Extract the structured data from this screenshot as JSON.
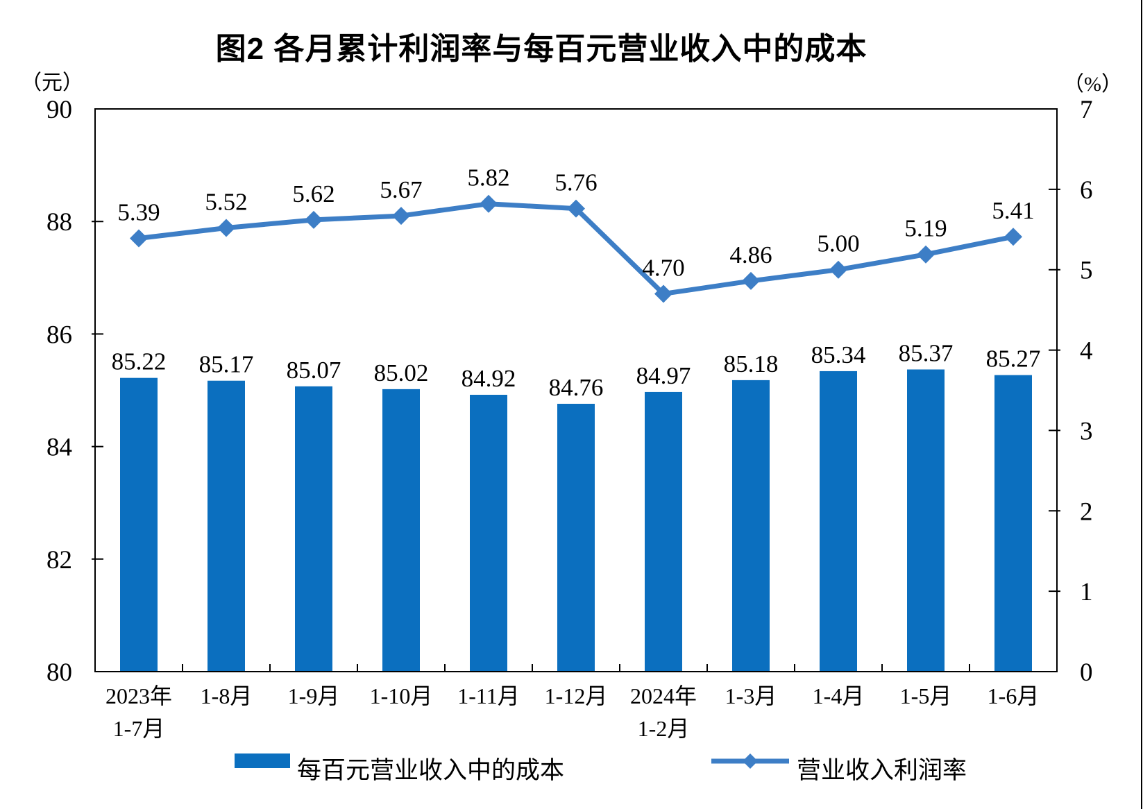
{
  "title": "图2  各月累计利润率与每百元营业收入中的成本",
  "left_axis": {
    "unit": "（元）",
    "min": 80,
    "max": 90,
    "step": 2
  },
  "right_axis": {
    "unit": "（%）",
    "min": 0,
    "max": 7,
    "step": 1
  },
  "colors": {
    "bar": "#0B6FBF",
    "line": "#3D7EC6",
    "axis": "#000000",
    "text": "#000000"
  },
  "legend": {
    "position": "bottom"
  },
  "chart_data": {
    "type": "bar+line",
    "categories": [
      [
        "2023年",
        "1-7月"
      ],
      [
        "1-8月"
      ],
      [
        "1-9月"
      ],
      [
        "1-10月"
      ],
      [
        "1-11月"
      ],
      [
        "1-12月"
      ],
      [
        "2024年",
        "1-2月"
      ],
      [
        "1-3月"
      ],
      [
        "1-4月"
      ],
      [
        "1-5月"
      ],
      [
        "1-6月"
      ]
    ],
    "series": [
      {
        "name": "每百元营业收入中的成本",
        "type": "bar",
        "axis": "left",
        "unit": "元",
        "values": [
          85.22,
          85.17,
          85.07,
          85.02,
          84.92,
          84.76,
          84.97,
          85.18,
          85.34,
          85.37,
          85.27
        ]
      },
      {
        "name": "营业收入利润率",
        "type": "line",
        "axis": "right",
        "unit": "%",
        "values": [
          5.39,
          5.52,
          5.62,
          5.67,
          5.82,
          5.76,
          4.7,
          4.86,
          5.0,
          5.19,
          5.41
        ]
      }
    ],
    "left_ylim": [
      80,
      90
    ],
    "right_ylim": [
      0,
      7
    ],
    "grid": false,
    "legend_position": "bottom",
    "data_labels": true,
    "label_decimals": 2
  }
}
